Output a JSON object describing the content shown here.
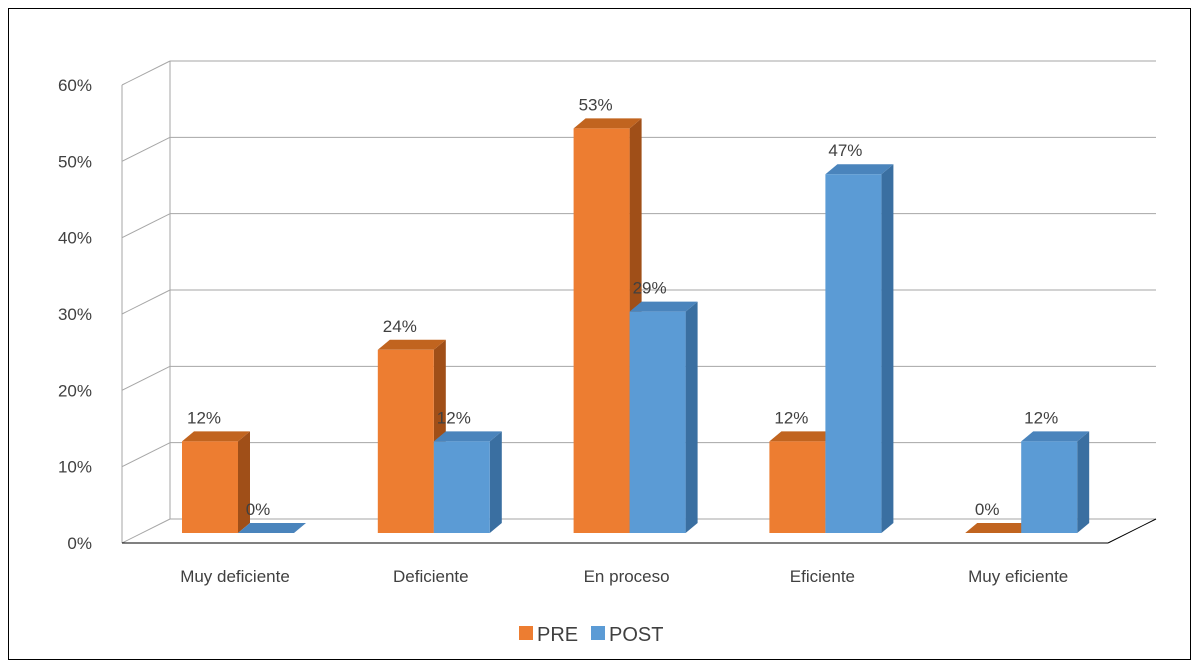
{
  "chart_data": {
    "type": "bar",
    "categories": [
      "Muy deficiente",
      "Deficiente",
      "En proceso",
      "Eficiente",
      "Muy eficiente"
    ],
    "series": [
      {
        "name": "PRE",
        "values": [
          12,
          24,
          53,
          12,
          0
        ],
        "labels": [
          "12%",
          "24%",
          "53%",
          "12%",
          "0%"
        ]
      },
      {
        "name": "POST",
        "values": [
          0,
          12,
          29,
          47,
          12
        ],
        "labels": [
          "0%",
          "12%",
          "29%",
          "47%",
          "12%"
        ]
      }
    ],
    "ylim": [
      0,
      60
    ],
    "yticks": [
      "0%",
      "10%",
      "20%",
      "30%",
      "40%",
      "50%",
      "60%"
    ],
    "grid": true,
    "legend": "bottom",
    "style": "3d-clustered-column"
  },
  "colors": {
    "pre_front": "#ED7D31",
    "pre_top": "#C1641F",
    "pre_side": "#A04F18",
    "post_front": "#5B9BD5",
    "post_top": "#4A84BC",
    "post_side": "#3A6FA1",
    "grid": "#a6a6a6"
  }
}
